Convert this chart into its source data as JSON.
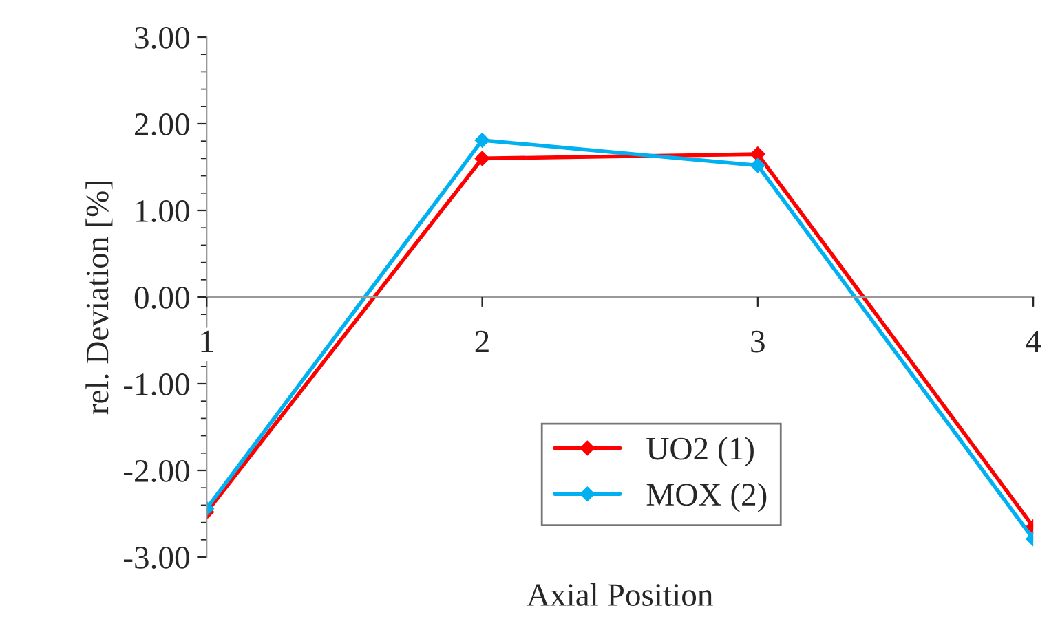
{
  "chart_data": {
    "type": "line",
    "xlabel": "Axial Position",
    "ylabel": "rel. Deviation [%]",
    "x": [
      1,
      2,
      3,
      4
    ],
    "series": [
      {
        "name": "UO2 (1)",
        "color": "#ff0000",
        "values": [
          -2.48,
          1.6,
          1.65,
          -2.65
        ]
      },
      {
        "name": "MOX (2)",
        "color": "#00b0f0",
        "values": [
          -2.44,
          1.81,
          1.52,
          -2.79
        ]
      }
    ],
    "xlim": [
      1,
      4
    ],
    "xticks": [
      1,
      2,
      3,
      4
    ],
    "ylim": [
      -3,
      3
    ],
    "yticks": [
      {
        "value": -3,
        "label": "-3.00"
      },
      {
        "value": -2,
        "label": "-2.00"
      },
      {
        "value": -1,
        "label": "-1.00"
      },
      {
        "value": 0,
        "label": "0.00"
      },
      {
        "value": 1,
        "label": "1.00"
      },
      {
        "value": 2,
        "label": "2.00"
      },
      {
        "value": 3,
        "label": "3.00"
      }
    ],
    "grid": false,
    "legend": "bottom",
    "marker": "diamond",
    "line_style": "solid"
  }
}
